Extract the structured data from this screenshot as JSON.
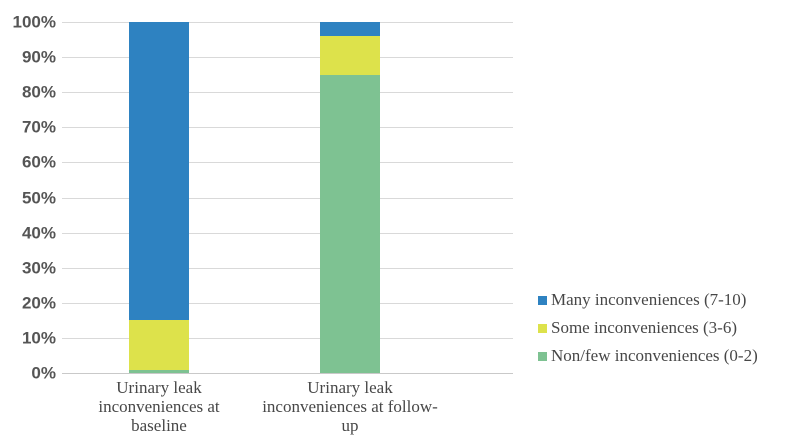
{
  "chart_data": {
    "type": "bar",
    "stacked": true,
    "unit": "%",
    "title": "",
    "xlabel": "",
    "ylabel": "",
    "grid": true,
    "legend_position": "right",
    "gridline_color": "#d9d9d9",
    "text_color": "#474747",
    "categories": [
      {
        "label_lines": [
          "Urinary leak",
          "inconveniences at",
          "baseline"
        ]
      },
      {
        "label_lines": [
          "Urinary leak",
          "inconveniences at follow-",
          "up"
        ]
      }
    ],
    "series": [
      {
        "name": "Many inconveniences (7-10)",
        "color": "#2e82c1",
        "values": [
          85,
          4
        ]
      },
      {
        "name": "Some inconveniences (3-6)",
        "color": "#dde24b",
        "values": [
          14,
          11
        ]
      },
      {
        "name": "Non/few inconveniences (0-2)",
        "color": "#7ec292",
        "values": [
          1,
          85
        ]
      }
    ],
    "y_axis": {
      "min": 0,
      "max": 100,
      "step": 10,
      "ticks": [
        "100%",
        "90%",
        "80%",
        "70%",
        "60%",
        "50%",
        "40%",
        "30%",
        "20%",
        "10%",
        "0%"
      ]
    }
  }
}
